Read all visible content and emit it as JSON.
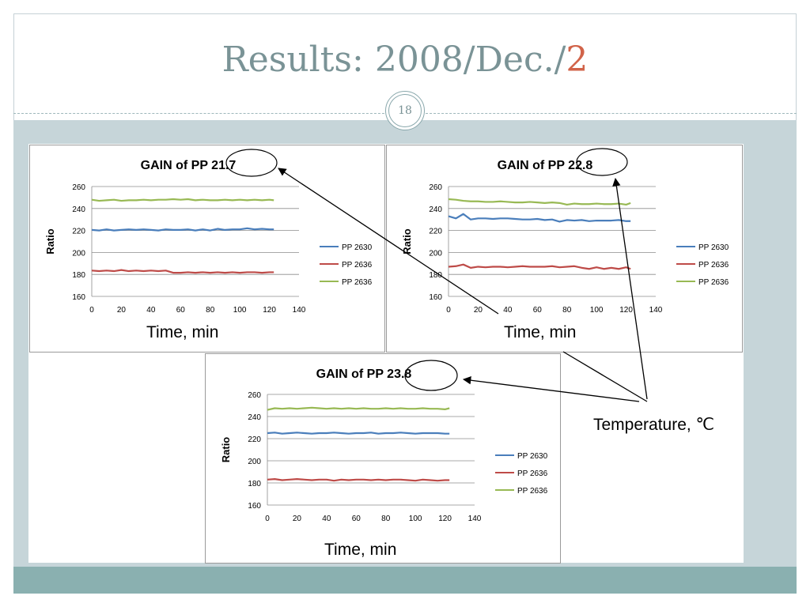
{
  "slide": {
    "title_main": "Results: 2008/Dec./",
    "title_accent": "2",
    "page_number": "18",
    "temperature_label": "Temperature, ℃",
    "accent_color": "#d16349"
  },
  "chart_data": [
    {
      "type": "line",
      "title": "GAIN of PP 21.7",
      "title_prefix": "GAIN of PP ",
      "title_highlight": "21.7",
      "xlabel": "Time, min",
      "ylabel": "Ratio",
      "xlim": [
        0,
        140
      ],
      "ylim": [
        160,
        260
      ],
      "xticks": [
        0,
        20,
        40,
        60,
        80,
        100,
        120,
        140
      ],
      "yticks": [
        160,
        180,
        200,
        220,
        240,
        260
      ],
      "grid": "horizontal",
      "legend_position": "right",
      "x": [
        0,
        5,
        10,
        15,
        20,
        25,
        30,
        35,
        40,
        45,
        50,
        55,
        60,
        65,
        70,
        75,
        80,
        85,
        90,
        95,
        100,
        105,
        110,
        115,
        120,
        123
      ],
      "series": [
        {
          "name": "PP 2630",
          "color": "#4a7ebb",
          "values": [
            220.5,
            220,
            221,
            220,
            220.5,
            221,
            220.5,
            221,
            220.5,
            220,
            221,
            220.5,
            220.5,
            221,
            220,
            221,
            220,
            221.5,
            220.5,
            221,
            221,
            222,
            221,
            221.5,
            221,
            221
          ]
        },
        {
          "name": "PP 2636",
          "color": "#be4b48",
          "values": [
            183.5,
            183,
            183.5,
            183,
            184,
            183,
            183.5,
            183,
            183.5,
            183,
            183.5,
            181.5,
            181.5,
            182,
            181.5,
            182,
            181.5,
            182,
            181.5,
            182,
            181.5,
            182,
            182,
            181.5,
            182,
            182
          ]
        },
        {
          "name": "PP 2636",
          "color": "#98b954",
          "values": [
            248,
            247,
            247.5,
            248,
            247,
            247.5,
            247.5,
            248,
            247.5,
            248,
            248,
            248.5,
            248,
            248.5,
            247.5,
            248,
            247.5,
            247.5,
            248,
            247.5,
            248,
            247.5,
            248,
            247.5,
            248,
            247.5
          ]
        }
      ]
    },
    {
      "type": "line",
      "title": "GAIN of PP 22.8",
      "title_prefix": "GAIN of PP ",
      "title_highlight": "22.8",
      "xlabel": "Time, min",
      "ylabel": "Ratio",
      "xlim": [
        0,
        140
      ],
      "ylim": [
        160,
        260
      ],
      "xticks": [
        0,
        20,
        40,
        60,
        80,
        100,
        120,
        140
      ],
      "yticks": [
        160,
        180,
        200,
        220,
        240,
        260
      ],
      "grid": "horizontal",
      "legend_position": "right",
      "x": [
        0,
        5,
        10,
        15,
        20,
        25,
        30,
        35,
        40,
        45,
        50,
        55,
        60,
        65,
        70,
        75,
        80,
        85,
        90,
        95,
        100,
        105,
        110,
        115,
        120,
        123
      ],
      "series": [
        {
          "name": "PP 2630",
          "color": "#4a7ebb",
          "values": [
            233,
            231,
            235,
            230,
            231,
            231,
            230.5,
            231,
            231,
            230.5,
            230,
            230,
            230.5,
            229.5,
            230,
            228,
            229.5,
            229,
            229.5,
            228.5,
            229,
            229,
            229,
            229.5,
            228.5,
            228.5
          ]
        },
        {
          "name": "PP 2636",
          "color": "#be4b48",
          "values": [
            187,
            187.5,
            189,
            186,
            187,
            186.5,
            187,
            187,
            186.5,
            187,
            187.5,
            187,
            187,
            187,
            187.5,
            186.5,
            187,
            187.5,
            186,
            185,
            186.5,
            185,
            186,
            185,
            186.5,
            185
          ]
        },
        {
          "name": "PP 2636",
          "color": "#98b954",
          "values": [
            248.5,
            248,
            247,
            246.5,
            246.5,
            246,
            246,
            246.5,
            246,
            245.5,
            245.5,
            246,
            245.5,
            245,
            245.5,
            245,
            243.5,
            244.5,
            244,
            244,
            244.5,
            244,
            244,
            244.5,
            243.5,
            245
          ]
        }
      ]
    },
    {
      "type": "line",
      "title": "GAIN of PP 23.8",
      "title_prefix": "GAIN of PP ",
      "title_highlight": "23.8",
      "xlabel": "Time, min",
      "ylabel": "Ratio",
      "xlim": [
        0,
        140
      ],
      "ylim": [
        160,
        260
      ],
      "xticks": [
        0,
        20,
        40,
        60,
        80,
        100,
        120,
        140
      ],
      "yticks": [
        160,
        180,
        200,
        220,
        240,
        260
      ],
      "grid": "horizontal",
      "legend_position": "right",
      "x": [
        0,
        5,
        10,
        15,
        20,
        25,
        30,
        35,
        40,
        45,
        50,
        55,
        60,
        65,
        70,
        75,
        80,
        85,
        90,
        95,
        100,
        105,
        110,
        115,
        120,
        123
      ],
      "series": [
        {
          "name": "PP 2630",
          "color": "#4a7ebb",
          "values": [
            225,
            225.5,
            224.5,
            225,
            225.5,
            225,
            224.5,
            225,
            225,
            225.5,
            225,
            224.5,
            225,
            225,
            225.5,
            224.5,
            225,
            225,
            225.5,
            225,
            224.5,
            225,
            225,
            225,
            224.5,
            224.5
          ]
        },
        {
          "name": "PP 2636",
          "color": "#be4b48",
          "values": [
            183,
            183.5,
            182.5,
            183,
            183.5,
            183,
            182.5,
            183,
            183,
            182,
            183,
            182.5,
            183,
            183,
            182.5,
            183,
            182.5,
            183,
            183,
            182.5,
            182,
            183,
            182.5,
            182,
            182.5,
            182.5
          ]
        },
        {
          "name": "PP 2636",
          "color": "#98b954",
          "values": [
            246,
            247.5,
            247,
            247.5,
            247,
            247.5,
            248,
            247.5,
            247,
            247.5,
            247,
            247.5,
            247,
            247.5,
            247,
            247,
            247.5,
            247,
            247.5,
            247,
            247,
            247.5,
            247,
            247,
            246.5,
            247.5
          ]
        }
      ]
    }
  ]
}
